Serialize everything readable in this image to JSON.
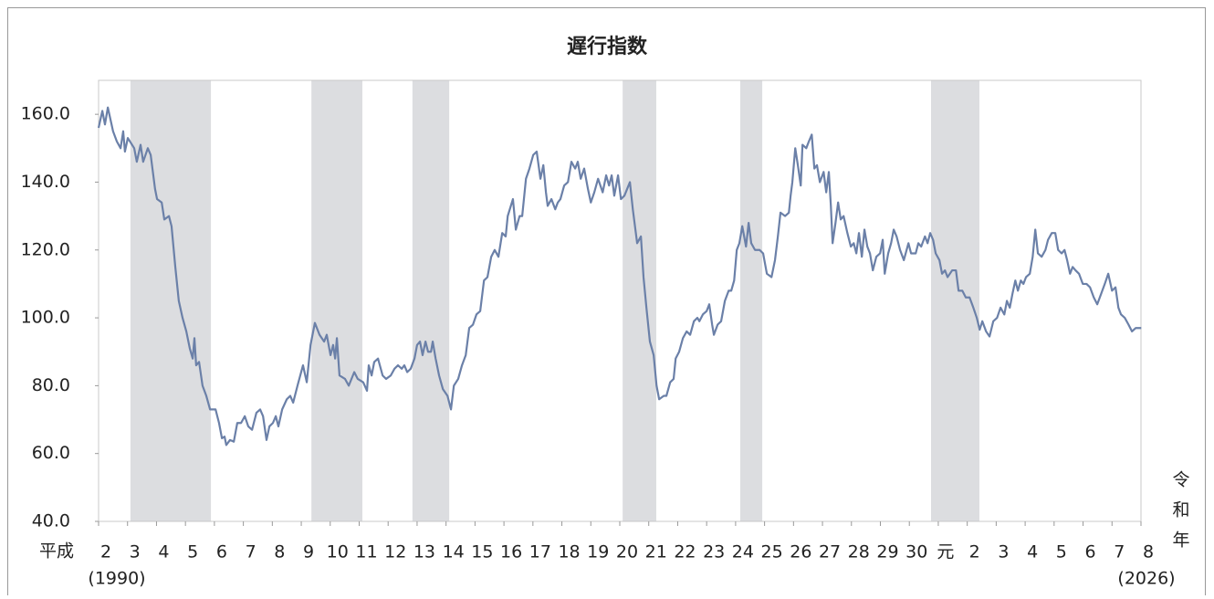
{
  "chart_data": {
    "type": "line",
    "title": "遅行指数",
    "color": "#6b80a8",
    "shade_color": "#dcdde0",
    "shaded_periods": [
      [
        1991.1,
        1993.88
      ],
      [
        1997.35,
        1999.11
      ],
      [
        2000.84,
        2002.11
      ],
      [
        2008.1,
        2009.26
      ],
      [
        2012.16,
        2012.92
      ],
      [
        2018.75,
        2020.42
      ]
    ],
    "era_label_left": "平成",
    "start_year_note": "(1990)",
    "end_year_note": "(2026)",
    "era_label_right": "令和年",
    "xlim": [
      1990,
      2026
    ],
    "xticks": [
      {
        "value": 1990,
        "label": "2"
      },
      {
        "value": 1991,
        "label": "3"
      },
      {
        "value": 1992,
        "label": "4"
      },
      {
        "value": 1993,
        "label": "5"
      },
      {
        "value": 1994,
        "label": "6"
      },
      {
        "value": 1995,
        "label": "7"
      },
      {
        "value": 1996,
        "label": "8"
      },
      {
        "value": 1997,
        "label": "9"
      },
      {
        "value": 1998,
        "label": "10"
      },
      {
        "value": 1999,
        "label": "11"
      },
      {
        "value": 2000,
        "label": "12"
      },
      {
        "value": 2001,
        "label": "13"
      },
      {
        "value": 2002,
        "label": "14"
      },
      {
        "value": 2003,
        "label": "15"
      },
      {
        "value": 2004,
        "label": "16"
      },
      {
        "value": 2005,
        "label": "17"
      },
      {
        "value": 2006,
        "label": "18"
      },
      {
        "value": 2007,
        "label": "19"
      },
      {
        "value": 2008,
        "label": "20"
      },
      {
        "value": 2009,
        "label": "21"
      },
      {
        "value": 2010,
        "label": "22"
      },
      {
        "value": 2011,
        "label": "23"
      },
      {
        "value": 2012,
        "label": "24"
      },
      {
        "value": 2013,
        "label": "25"
      },
      {
        "value": 2014,
        "label": "26"
      },
      {
        "value": 2015,
        "label": "27"
      },
      {
        "value": 2016,
        "label": "28"
      },
      {
        "value": 2017,
        "label": "29"
      },
      {
        "value": 2018,
        "label": "30"
      },
      {
        "value": 2019,
        "label": "元"
      },
      {
        "value": 2020,
        "label": "2"
      },
      {
        "value": 2021,
        "label": "3"
      },
      {
        "value": 2022,
        "label": "4"
      },
      {
        "value": 2023,
        "label": "5"
      },
      {
        "value": 2024,
        "label": "6"
      },
      {
        "value": 2025,
        "label": "7"
      },
      {
        "value": 2026,
        "label": "8"
      }
    ],
    "ylim": [
      40,
      170
    ],
    "yticks": [
      {
        "value": 40,
        "label": "40.0"
      },
      {
        "value": 60,
        "label": "60.0"
      },
      {
        "value": 80,
        "label": "80.0"
      },
      {
        "value": 100,
        "label": "100.0"
      },
      {
        "value": 120,
        "label": "120.0"
      },
      {
        "value": 140,
        "label": "140.0"
      },
      {
        "value": 160,
        "label": "160.0"
      }
    ],
    "x": [
      1990.0,
      1990.13,
      1990.22,
      1990.32,
      1990.5,
      1990.63,
      1990.76,
      1990.85,
      1990.91,
      1991.01,
      1991.23,
      1991.32,
      1991.45,
      1991.54,
      1991.7,
      1991.8,
      1991.95,
      1992.02,
      1992.18,
      1992.27,
      1992.43,
      1992.52,
      1992.65,
      1992.77,
      1992.9,
      1993.03,
      1993.15,
      1993.25,
      1993.31,
      1993.37,
      1993.47,
      1993.59,
      1993.72,
      1993.85,
      1994.04,
      1994.16,
      1994.26,
      1994.35,
      1994.41,
      1994.54,
      1994.67,
      1994.79,
      1994.92,
      1995.05,
      1995.17,
      1995.3,
      1995.45,
      1995.58,
      1995.68,
      1995.8,
      1995.9,
      1996.02,
      1996.12,
      1996.21,
      1996.34,
      1996.5,
      1996.62,
      1996.72,
      1996.87,
      1997.06,
      1997.19,
      1997.32,
      1997.47,
      1997.63,
      1997.79,
      1997.88,
      1998.01,
      1998.1,
      1998.17,
      1998.23,
      1998.32,
      1998.51,
      1998.64,
      1998.83,
      1998.95,
      1999.14,
      1999.27,
      1999.33,
      1999.43,
      1999.52,
      1999.65,
      1999.81,
      1999.93,
      2000.09,
      2000.22,
      2000.34,
      2000.47,
      2000.56,
      2000.66,
      2000.78,
      2000.91,
      2001.0,
      2001.1,
      2001.19,
      2001.29,
      2001.38,
      2001.48,
      2001.54,
      2001.64,
      2001.76,
      2001.89,
      2002.05,
      2002.17,
      2002.27,
      2002.42,
      2002.55,
      2002.68,
      2002.8,
      2002.93,
      2003.05,
      2003.18,
      2003.31,
      2003.43,
      2003.56,
      2003.68,
      2003.81,
      2003.94,
      2004.06,
      2004.13,
      2004.31,
      2004.41,
      2004.54,
      2004.63,
      2004.76,
      2004.88,
      2005.01,
      2005.13,
      2005.26,
      2005.36,
      2005.45,
      2005.51,
      2005.64,
      2005.77,
      2005.86,
      2005.95,
      2006.08,
      2006.21,
      2006.33,
      2006.46,
      2006.55,
      2006.65,
      2006.77,
      2006.9,
      2007.0,
      2007.12,
      2007.25,
      2007.41,
      2007.53,
      2007.63,
      2007.72,
      2007.81,
      2007.94,
      2008.04,
      2008.16,
      2008.35,
      2008.45,
      2008.6,
      2008.73,
      2008.82,
      2008.92,
      2009.04,
      2009.17,
      2009.27,
      2009.36,
      2009.52,
      2009.61,
      2009.74,
      2009.86,
      2009.93,
      2010.05,
      2010.18,
      2010.31,
      2010.43,
      2010.56,
      2010.68,
      2010.75,
      2010.87,
      2011.0,
      2011.09,
      2011.19,
      2011.25,
      2011.38,
      2011.5,
      2011.63,
      2011.76,
      2011.85,
      2011.95,
      2012.04,
      2012.13,
      2012.23,
      2012.36,
      2012.45,
      2012.54,
      2012.67,
      2012.83,
      2012.95,
      2013.08,
      2013.24,
      2013.36,
      2013.46,
      2013.55,
      2013.71,
      2013.84,
      2013.9,
      2013.96,
      2014.06,
      2014.15,
      2014.25,
      2014.31,
      2014.44,
      2014.53,
      2014.63,
      2014.72,
      2014.81,
      2014.91,
      2015.04,
      2015.13,
      2015.22,
      2015.29,
      2015.35,
      2015.45,
      2015.54,
      2015.63,
      2015.73,
      2015.86,
      2015.98,
      2016.08,
      2016.17,
      2016.26,
      2016.36,
      2016.45,
      2016.55,
      2016.64,
      2016.74,
      2016.86,
      2016.99,
      2017.08,
      2017.15,
      2017.27,
      2017.37,
      2017.46,
      2017.56,
      2017.68,
      2017.81,
      2017.97,
      2018.06,
      2018.22,
      2018.31,
      2018.41,
      2018.54,
      2018.63,
      2018.72,
      2018.82,
      2018.91,
      2019.04,
      2019.13,
      2019.23,
      2019.32,
      2019.48,
      2019.61,
      2019.7,
      2019.83,
      2019.95,
      2020.08,
      2020.21,
      2020.33,
      2020.43,
      2020.52,
      2020.65,
      2020.77,
      2020.9,
      2021.03,
      2021.15,
      2021.28,
      2021.37,
      2021.47,
      2021.56,
      2021.66,
      2021.75,
      2021.85,
      2021.94,
      2022.03,
      2022.16,
      2022.26,
      2022.35,
      2022.44,
      2022.57,
      2022.7,
      2022.79,
      2022.92,
      2023.04,
      2023.14,
      2023.26,
      2023.36,
      2023.45,
      2023.55,
      2023.64,
      2023.74,
      2023.86,
      2023.99,
      2024.12,
      2024.24,
      2024.37,
      2024.49,
      2024.62,
      2024.75,
      2024.87,
      2025.0,
      2025.12,
      2025.22,
      2025.31,
      2025.44,
      2025.57,
      2025.69,
      2025.82,
      2026.01
    ],
    "values": [
      156,
      161,
      157,
      162,
      155,
      152,
      150,
      155,
      149,
      153,
      150,
      146,
      151,
      146,
      150,
      148,
      138,
      135,
      134,
      129,
      130,
      127,
      115,
      105,
      100,
      96,
      91,
      88,
      94,
      86,
      87,
      80,
      77,
      73,
      73,
      69,
      64.5,
      65,
      62.5,
      64,
      63.5,
      69,
      69,
      71,
      68,
      67,
      72,
      73,
      71,
      64,
      68,
      69,
      71,
      68,
      73,
      76,
      77,
      75,
      80,
      86,
      81,
      92,
      98.5,
      95,
      93,
      95,
      89,
      92,
      88,
      94,
      83,
      82,
      80,
      84,
      82,
      81,
      78.5,
      86,
      83,
      87,
      88,
      83,
      82,
      83,
      85,
      86,
      85,
      86,
      84,
      85,
      88,
      92,
      93,
      89,
      93,
      90,
      90,
      93,
      88,
      83,
      79,
      77,
      73,
      80,
      82,
      86,
      89,
      97,
      98,
      101,
      102,
      111,
      112,
      118,
      120,
      118,
      125,
      124,
      130,
      135,
      126,
      130,
      130,
      141,
      144,
      148,
      149,
      141,
      145,
      137,
      133,
      135,
      132,
      134,
      135,
      139,
      140,
      146,
      144,
      146,
      141,
      144,
      138,
      134,
      137,
      141,
      137,
      142,
      139,
      142,
      136,
      142,
      135,
      136,
      140,
      132,
      122,
      124,
      112,
      103,
      93,
      89,
      80,
      76,
      77,
      77,
      81,
      82,
      88,
      90,
      94,
      96,
      95,
      99,
      100,
      99,
      101,
      102,
      104,
      98,
      95,
      98,
      99,
      105,
      108,
      108,
      111,
      120,
      122,
      127,
      121,
      128,
      122,
      120,
      120,
      119,
      113,
      112,
      117,
      124,
      131,
      130,
      131,
      136,
      140,
      150,
      145,
      139,
      151,
      150,
      152,
      154,
      144,
      145,
      140,
      143,
      137,
      143,
      133,
      122,
      128,
      134,
      129,
      130,
      125,
      121,
      122,
      119,
      125,
      118,
      126,
      121,
      119,
      114,
      118,
      119,
      123,
      113,
      119,
      122,
      126,
      124,
      120,
      117,
      122,
      119,
      119,
      122,
      121,
      124,
      122,
      125,
      123,
      119,
      117,
      113,
      114,
      112,
      114,
      114,
      108,
      108,
      106,
      106,
      103,
      100,
      96.5,
      99,
      96,
      94.5,
      99,
      100,
      103,
      101,
      105,
      103,
      107,
      111,
      108,
      111,
      110,
      112,
      113,
      118,
      126,
      119,
      118,
      120,
      123,
      125,
      125,
      120,
      119,
      120,
      117,
      113,
      115,
      114,
      113,
      110,
      110,
      109,
      106,
      104,
      107,
      110,
      113,
      108,
      109,
      103,
      101,
      100,
      98,
      96,
      97,
      97
    ]
  }
}
